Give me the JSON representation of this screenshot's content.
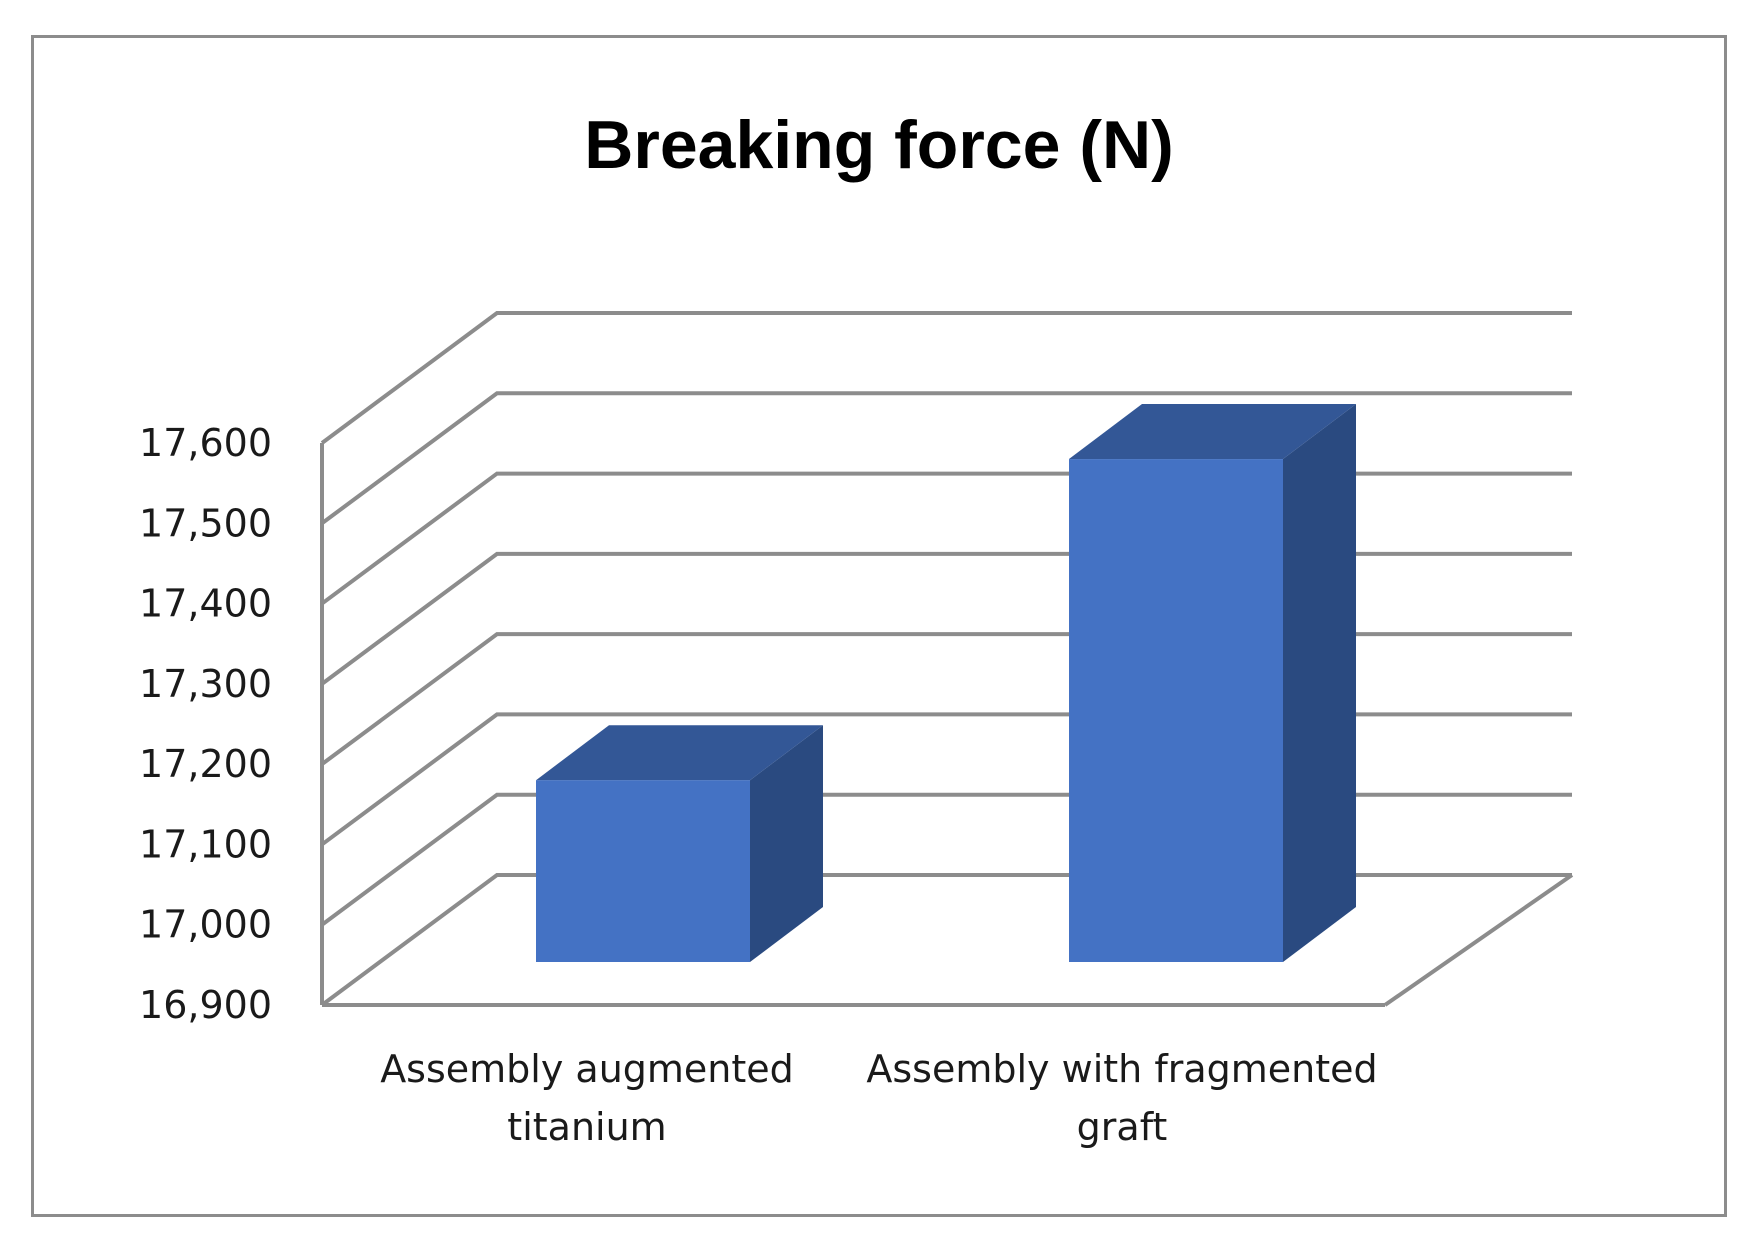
{
  "chart_data": {
    "type": "bar",
    "style": "3d-column",
    "title": "Breaking force (N)",
    "categories": [
      "Assembly augmented titanium",
      "Assembly with fragmented graft"
    ],
    "category_lines": [
      [
        "Assembly augmented",
        "titanium"
      ],
      [
        "Assembly with fragmented",
        "graft"
      ]
    ],
    "values": [
      17180,
      17580
    ],
    "ylim": [
      16900,
      17600
    ],
    "yticks": [
      16900,
      17000,
      17100,
      17200,
      17300,
      17400,
      17500,
      17600
    ],
    "ytick_labels": [
      "16,900",
      "17,000",
      "17,100",
      "17,200",
      "17,300",
      "17,400",
      "17,500",
      "17,600"
    ],
    "grid": true,
    "legend": "none",
    "colors": {
      "bar_front": "#4472c4",
      "bar_top": "#335796",
      "bar_side": "#2a4a80",
      "grid": "#8c8c8c"
    }
  }
}
